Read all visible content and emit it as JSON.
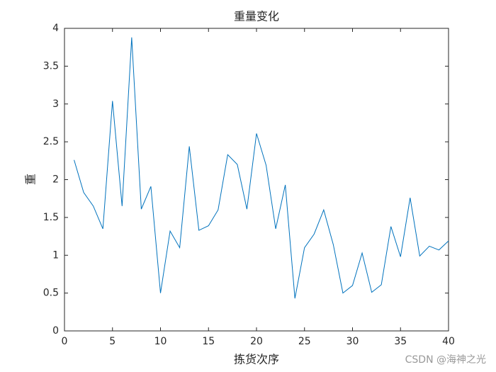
{
  "chart_data": {
    "type": "line",
    "title": "重量变化",
    "x_label": "拣货次序",
    "y_label": "重",
    "x": [
      1,
      2,
      3,
      4,
      5,
      6,
      7,
      8,
      9,
      10,
      11,
      12,
      13,
      14,
      15,
      16,
      17,
      18,
      19,
      20,
      21,
      22,
      23,
      24,
      25,
      26,
      27,
      28,
      29,
      30,
      31,
      32,
      33,
      34,
      35,
      36,
      37,
      38,
      39,
      40
    ],
    "series": [
      {
        "color": "#0072BD",
        "values": [
          2.26,
          1.83,
          1.65,
          1.35,
          3.04,
          1.65,
          3.88,
          1.61,
          1.91,
          0.5,
          1.32,
          1.1,
          2.44,
          1.33,
          1.39,
          1.6,
          2.33,
          2.2,
          1.61,
          2.61,
          2.19,
          1.35,
          1.93,
          0.43,
          1.1,
          1.28,
          1.6,
          1.14,
          0.5,
          0.6,
          1.03,
          0.51,
          0.61,
          1.38,
          0.98,
          1.76,
          0.99,
          1.12,
          1.07,
          1.19
        ]
      }
    ],
    "xlim": [
      0,
      40
    ],
    "xticks": [
      0,
      5,
      10,
      15,
      20,
      25,
      30,
      35,
      40
    ],
    "ylim": [
      0,
      4
    ],
    "yticks": [
      0,
      0.5,
      1,
      1.5,
      2,
      2.5,
      3,
      3.5,
      4
    ],
    "grid": false,
    "watermark": "CSDN @海神之光"
  }
}
